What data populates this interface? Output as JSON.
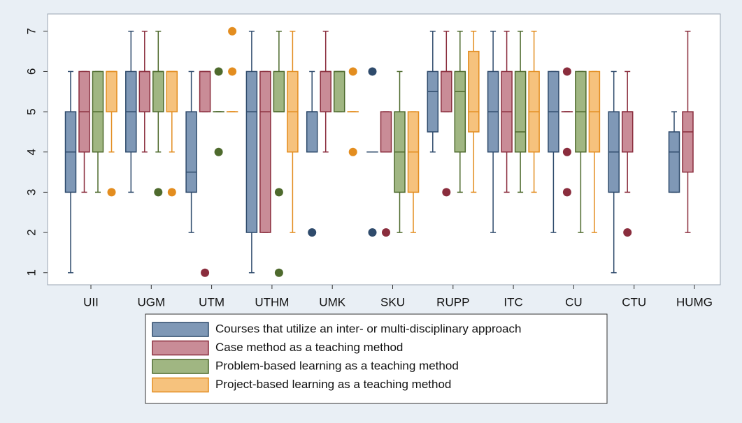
{
  "chart_data": {
    "type": "box",
    "categories": [
      "UII",
      "UGM",
      "UTM",
      "UTHM",
      "UMK",
      "SKU",
      "RUPP",
      "ITC",
      "CU",
      "CTU",
      "HUMG"
    ],
    "ylim": [
      0.7,
      7.43
    ],
    "yticks": [
      1,
      2,
      3,
      4,
      5,
      6,
      7
    ],
    "legend": "bottom",
    "series": [
      {
        "name": "Courses that utilize an inter- or multi-disciplinary approach",
        "color": "#7f98b6",
        "edge": "#2f4b6c",
        "min": [
          1,
          3,
          2,
          1,
          4,
          4,
          4,
          2,
          2,
          1,
          3
        ],
        "q1": [
          3,
          4,
          3,
          2,
          4,
          4,
          4.5,
          4,
          4,
          3,
          3
        ],
        "median": [
          4,
          5,
          3.5,
          5,
          5,
          4,
          5.5,
          5,
          5,
          4,
          4
        ],
        "q3": [
          5,
          6,
          5,
          6,
          5,
          4,
          6,
          6,
          6,
          5,
          4.5
        ],
        "max": [
          6,
          7,
          6,
          7,
          6,
          4,
          7,
          7,
          6,
          6,
          5
        ],
        "outliers": [
          [],
          [],
          [],
          [],
          [
            2
          ],
          [
            6,
            2
          ],
          [],
          [],
          [],
          [],
          []
        ]
      },
      {
        "name": "Case method as a teaching method",
        "color": "#c98c97",
        "edge": "#8a2d3d",
        "min": [
          3,
          4,
          5,
          2,
          4,
          4,
          5,
          3,
          5,
          3,
          2
        ],
        "q1": [
          4,
          5,
          5,
          2,
          5,
          4,
          5,
          4,
          5,
          4,
          3.5
        ],
        "median": [
          5,
          6,
          6,
          5,
          6,
          4,
          6,
          5,
          5,
          5,
          4.5
        ],
        "q3": [
          6,
          6,
          6,
          6,
          6,
          5,
          6,
          6,
          5,
          5,
          5
        ],
        "max": [
          6,
          7,
          6,
          6,
          7,
          5,
          7,
          7,
          5,
          6,
          7
        ],
        "outliers": [
          [],
          [],
          [
            1
          ],
          [],
          [],
          [
            2
          ],
          [
            3
          ],
          [],
          [
            6,
            4,
            3
          ],
          [
            2
          ],
          []
        ]
      },
      {
        "name": "Problem-based learning as a teaching method",
        "color": "#a0b682",
        "edge": "#4e6a2d",
        "min": [
          3,
          4,
          5,
          5,
          5,
          2,
          3,
          3,
          2,
          null,
          null
        ],
        "q1": [
          4,
          5,
          5,
          5,
          5,
          3,
          4,
          4,
          4,
          null,
          null
        ],
        "median": [
          5,
          6,
          5,
          5,
          6,
          4,
          5.5,
          4.5,
          5,
          null,
          null
        ],
        "q3": [
          6,
          6,
          5,
          6,
          6,
          5,
          6,
          6,
          6,
          null,
          null
        ],
        "max": [
          6,
          7,
          5,
          7,
          6,
          6,
          7,
          7,
          6,
          null,
          null
        ],
        "outliers": [
          [],
          [
            3
          ],
          [
            6,
            4
          ],
          [
            3,
            1
          ],
          [],
          [],
          [],
          [],
          [],
          [],
          []
        ]
      },
      {
        "name": "Project-based learning as a teaching method",
        "color": "#f6c27d",
        "edge": "#e38d1f",
        "min": [
          4,
          4,
          5,
          2,
          5,
          2,
          3,
          3,
          2,
          null,
          null
        ],
        "q1": [
          5,
          5,
          5,
          4,
          5,
          3,
          4.5,
          4,
          4,
          null,
          null
        ],
        "median": [
          6,
          6,
          5,
          5,
          5,
          4,
          5,
          5,
          5,
          null,
          null
        ],
        "q3": [
          6,
          6,
          5,
          6,
          5,
          5,
          6.5,
          6,
          6,
          null,
          null
        ],
        "max": [
          6,
          6,
          5,
          7,
          5,
          5,
          7,
          7,
          6,
          null,
          null
        ],
        "outliers": [
          [
            3
          ],
          [
            3
          ],
          [
            7,
            6
          ],
          [],
          [
            6,
            4
          ],
          [],
          [],
          [],
          [],
          [],
          []
        ]
      }
    ]
  }
}
